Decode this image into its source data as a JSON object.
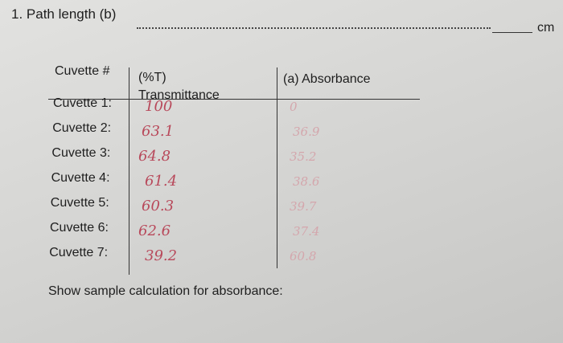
{
  "header": {
    "question": "1. Path length (b)",
    "unit": "cm"
  },
  "table": {
    "columns": [
      "Cuvette #",
      "(%T) Transmittance",
      "(a) Absorbance"
    ],
    "rows": [
      [
        "Cuvette 1:",
        "100",
        "0"
      ],
      [
        "Cuvette 2:",
        "63.1",
        "36.9"
      ],
      [
        "Cuvette 3:",
        "64.8",
        "35.2"
      ],
      [
        "Cuvette 4:",
        "61.4",
        "38.6"
      ],
      [
        "Cuvette 5:",
        "60.3",
        "39.7"
      ],
      [
        "Cuvette 6:",
        "62.6",
        "37.4"
      ],
      [
        "Cuvette 7:",
        "39.2",
        "60.8"
      ]
    ]
  },
  "footer": {
    "prompt": "Show sample calculation for absorbance:"
  }
}
